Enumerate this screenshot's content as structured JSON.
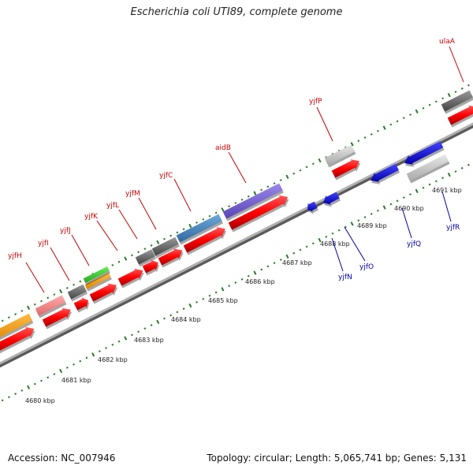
{
  "title": "Escherichia coli UTI89, complete genome",
  "footer": {
    "accession": "Accession: NC_007946",
    "summary": "Topology: circular; Length: 5,065,741 bp; Genes: 5,131"
  },
  "colors": {
    "backbone": "#8a8a8a",
    "tick": "#2a7a2a",
    "label_red": "#cc0000",
    "label_blue": "#0000aa"
  },
  "scale_labels": [
    "4680 kbp",
    "4681 kbp",
    "4682 kbp",
    "4683 kbp",
    "4684 kbp",
    "4685 kbp",
    "4686 kbp",
    "4687 kbp",
    "4688 kbp",
    "4689 kbp",
    "4690 kbp",
    "4691 kbp"
  ],
  "forward_genes": [
    "yjfH",
    "yjfI",
    "yjfJ",
    "yjfK",
    "yjfL",
    "yjfM",
    "yjfC",
    "aidB",
    "yjfP",
    "ulaA"
  ],
  "reverse_genes": [
    "yjfN",
    "yjfO",
    "yjfQ",
    "yjfR"
  ]
}
